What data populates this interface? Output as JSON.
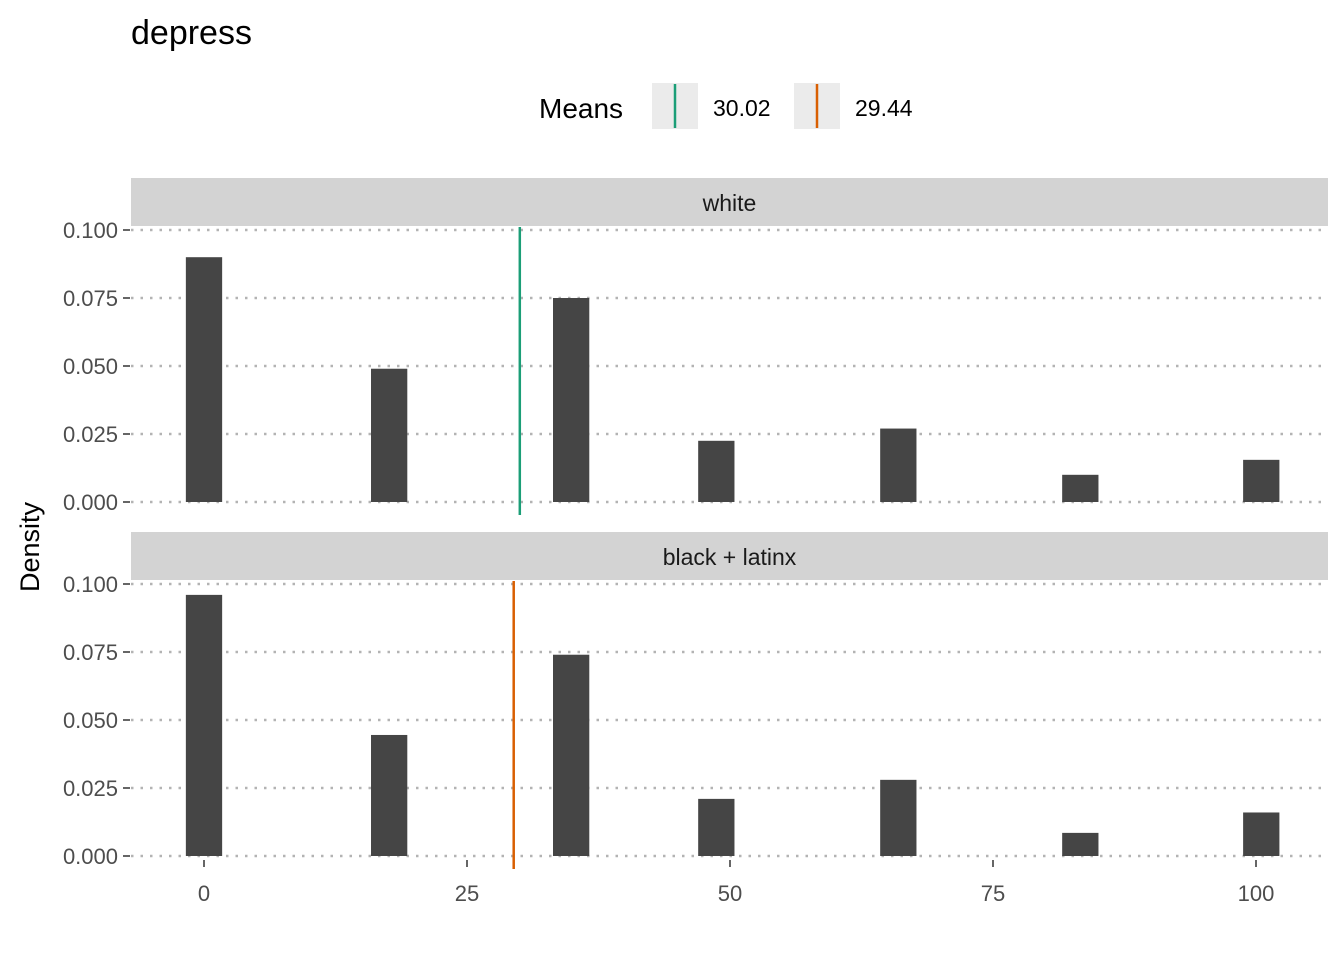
{
  "chart_data": {
    "type": "bar",
    "title": "depress",
    "xlabel": "",
    "ylabel": "Density",
    "legend": {
      "title": "Means",
      "position": "top",
      "entries": [
        {
          "label": "30.02",
          "color": "#1b9e77"
        },
        {
          "label": "29.44",
          "color": "#d95f02"
        }
      ]
    },
    "bar_color": "#454545",
    "grid": {
      "horizontal": "dotted",
      "vertical": false
    },
    "xlim": [
      -7,
      103
    ],
    "xticks": [
      0,
      25,
      50,
      75,
      100
    ],
    "xtick_labels": [
      "0",
      "25",
      "50",
      "75",
      "100"
    ],
    "ylim": [
      0,
      0.1
    ],
    "yticks": [
      0,
      0.025,
      0.05,
      0.075,
      0.1
    ],
    "ytick_labels": [
      "0.000",
      "0.025",
      "0.050",
      "0.075",
      "0.100"
    ],
    "x": [
      0,
      17.6,
      34.9,
      48.7,
      66,
      83.3,
      100.5
    ],
    "bar_width": 3.45,
    "panels": [
      {
        "strip": "white",
        "values": [
          0.09,
          0.049,
          0.075,
          0.0225,
          0.027,
          0.01,
          0.0155
        ],
        "mean": 30.02,
        "mean_color": "#1b9e77"
      },
      {
        "strip": "black + latinx",
        "values": [
          0.096,
          0.0445,
          0.074,
          0.021,
          0.028,
          0.0085,
          0.016
        ],
        "mean": 29.44,
        "mean_color": "#d95f02"
      }
    ]
  }
}
